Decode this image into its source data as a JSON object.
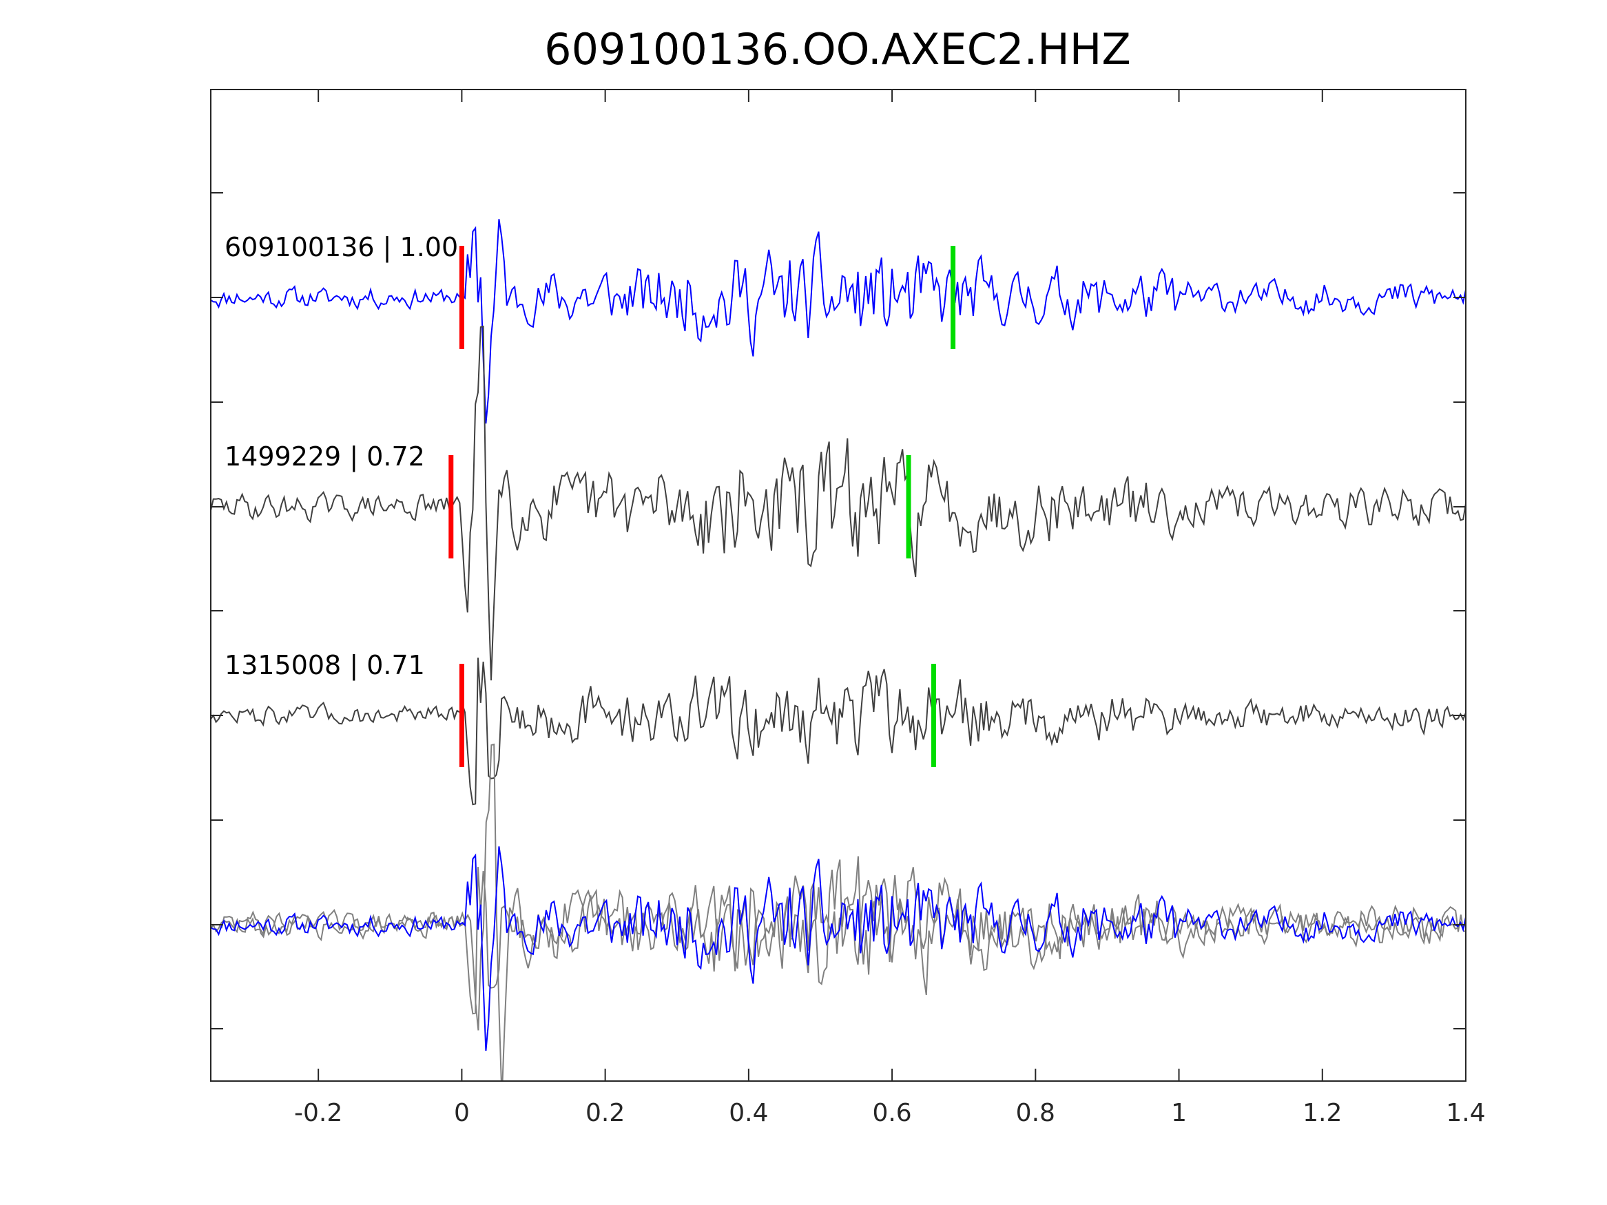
{
  "chart_data": {
    "type": "line",
    "title": "609100136.OO.AXEC2.HHZ",
    "xlabel": "",
    "ylabel": "",
    "xlim": [
      -0.35,
      1.4
    ],
    "x_ticks": [
      -0.2,
      0,
      0.2,
      0.4,
      0.6,
      0.8,
      1,
      1.2,
      1.4
    ],
    "x_tick_labels": [
      "-0.2",
      "0",
      "0.2",
      "0.4",
      "0.6",
      "0.8",
      "1",
      "1.2",
      "1.4"
    ],
    "grid": false,
    "legend": "none",
    "traces": [
      {
        "label": "609100136 | 1.00",
        "id": "609100136",
        "correlation": 1.0,
        "color": "#0000ff",
        "p_pick": 0.0,
        "s_pick": 0.685,
        "seed": 11,
        "amplitude": 1.0
      },
      {
        "label": "1499229 | 0.72",
        "id": "1499229",
        "correlation": 0.72,
        "color": "#404040",
        "p_pick": -0.015,
        "s_pick": 0.623,
        "seed": 29,
        "amplitude": 1.25
      },
      {
        "label": "1315008 | 0.71",
        "id": "1315008",
        "correlation": 0.71,
        "color": "#404040",
        "p_pick": 0.0,
        "s_pick": 0.658,
        "seed": 47,
        "amplitude": 0.95
      }
    ],
    "stack": {
      "colors": [
        "#0000ff",
        "#808080",
        "#808080"
      ]
    },
    "pick_colors": {
      "p": "#ff0000",
      "s": "#00dd00"
    }
  }
}
